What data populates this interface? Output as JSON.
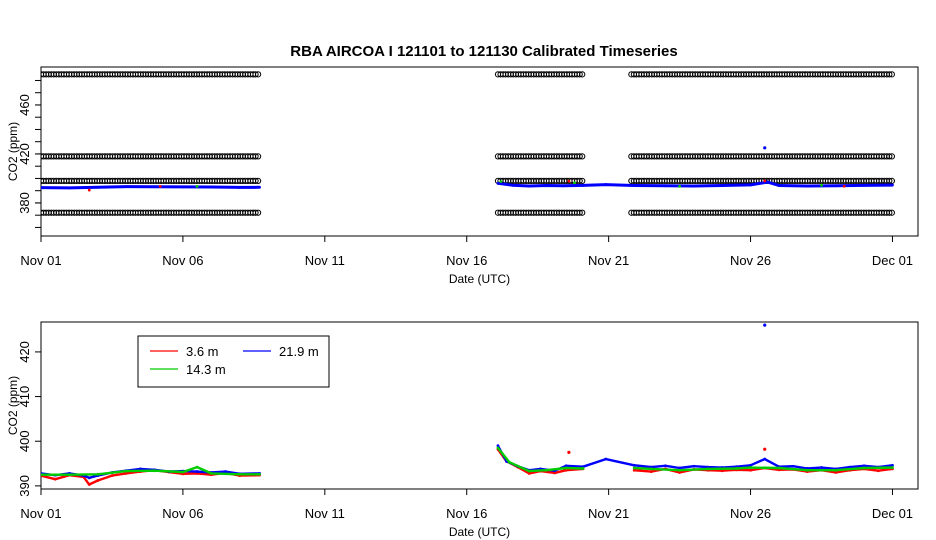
{
  "title": "RBA   AIRCOA I    121101  to  121130   Calibrated Timeseries",
  "colors": {
    "frame": "#000000",
    "red": "#ff0000",
    "green": "#00cc00",
    "blue": "#0000ff",
    "black": "#000000"
  },
  "chart_data": [
    {
      "type": "scatter",
      "xlabel": "Date (UTC)",
      "ylabel": "CO2 (ppm)",
      "xlim": [
        0,
        30.9
      ],
      "ylim": [
        353,
        491
      ],
      "xticks": [
        {
          "x": 0,
          "label": "Nov 01"
        },
        {
          "x": 5,
          "label": "Nov 06"
        },
        {
          "x": 10,
          "label": "Nov 11"
        },
        {
          "x": 15,
          "label": "Nov 16"
        },
        {
          "x": 20,
          "label": "Nov 21"
        },
        {
          "x": 25,
          "label": "Nov 26"
        },
        {
          "x": 30,
          "label": "Dec 01"
        }
      ],
      "yticks": [
        380,
        420,
        460
      ],
      "yticks_minor": [
        360,
        370,
        380,
        390,
        400,
        410,
        420,
        430,
        440,
        450,
        460,
        470,
        480
      ],
      "reference_levels": [
        {
          "y": 485,
          "segments": [
            [
              0,
              7.7
            ],
            [
              16.1,
              19.1
            ],
            [
              20.8,
              30
            ]
          ]
        },
        {
          "y": 418,
          "segments": [
            [
              0,
              7.7
            ],
            [
              16.1,
              19.1
            ],
            [
              20.8,
              30
            ]
          ]
        },
        {
          "y": 398,
          "segments": [
            [
              0,
              7.7
            ],
            [
              16.1,
              19.1
            ],
            [
              20.8,
              30
            ]
          ]
        },
        {
          "y": 372,
          "segments": [
            [
              0,
              7.7
            ],
            [
              16.1,
              19.1
            ],
            [
              20.8,
              30
            ]
          ]
        }
      ],
      "series": [
        {
          "name": "21.9 m",
          "color": "blue",
          "points": [
            [
              0,
              392.5
            ],
            [
              1,
              392.3
            ],
            [
              2,
              392.8
            ],
            [
              3,
              393.3
            ],
            [
              4,
              393.2
            ],
            [
              5,
              393.1
            ],
            [
              6,
              393
            ],
            [
              7,
              392.7
            ],
            [
              7.7,
              392.8
            ],
            [
              16.1,
              396
            ],
            [
              16.6,
              394.5
            ],
            [
              17.2,
              393.8
            ],
            [
              17.8,
              394.2
            ],
            [
              18.4,
              394
            ],
            [
              19.1,
              394.3
            ],
            [
              19.9,
              395
            ],
            [
              20.9,
              394.2
            ],
            [
              22,
              394
            ],
            [
              23,
              393.8
            ],
            [
              24,
              394.2
            ],
            [
              25,
              394.7
            ],
            [
              25.6,
              397
            ],
            [
              26,
              394.2
            ],
            [
              27,
              393.8
            ],
            [
              28,
              394
            ],
            [
              29,
              394.3
            ],
            [
              30,
              394.6
            ]
          ]
        },
        {
          "name": "14.3 m",
          "color": "green",
          "points": [
            [
              5.5,
              393.5
            ],
            [
              16.2,
              397.5
            ],
            [
              18.8,
              396.5
            ],
            [
              22.5,
              393.5
            ],
            [
              27.5,
              394.4
            ]
          ]
        },
        {
          "name": "3.6 m",
          "color": "red",
          "points": [
            [
              1.7,
              390.5
            ],
            [
              4.2,
              393.5
            ],
            [
              18.6,
              397.8
            ],
            [
              25.5,
              398
            ],
            [
              28.3,
              393.6
            ]
          ]
        }
      ],
      "outliers": [
        {
          "x": 25.5,
          "y": 425,
          "color": "blue"
        }
      ]
    },
    {
      "type": "line",
      "xlabel": "Date (UTC)",
      "ylabel": "CO2 (ppm)",
      "xlim": [
        0,
        30.9
      ],
      "ylim": [
        389.3,
        426.7
      ],
      "xticks": [
        {
          "x": 0,
          "label": "Nov 01"
        },
        {
          "x": 5,
          "label": "Nov 06"
        },
        {
          "x": 10,
          "label": "Nov 11"
        },
        {
          "x": 15,
          "label": "Nov 16"
        },
        {
          "x": 20,
          "label": "Nov 21"
        },
        {
          "x": 25,
          "label": "Nov 26"
        },
        {
          "x": 30,
          "label": "Dec 01"
        }
      ],
      "yticks": [
        390,
        400,
        410,
        420
      ],
      "legend": {
        "placement": "top-left",
        "entries": [
          {
            "label": "3.6 m",
            "color": "red"
          },
          {
            "label": "21.9 m",
            "color": "blue"
          },
          {
            "label": "14.3 m",
            "color": "green"
          }
        ]
      },
      "series": [
        {
          "name": "3.6 m",
          "color": "red",
          "points": [
            [
              0,
              392.3
            ],
            [
              0.5,
              391.5
            ],
            [
              1,
              392.4
            ],
            [
              1.5,
              392
            ],
            [
              1.7,
              390.3
            ],
            [
              2,
              391.2
            ],
            [
              2.5,
              392.3
            ],
            [
              3,
              392.8
            ],
            [
              3.5,
              393.2
            ],
            [
              4,
              393.5
            ],
            [
              4.5,
              393.1
            ],
            [
              5,
              392.7
            ],
            [
              5.5,
              392.8
            ],
            [
              6,
              392.5
            ],
            [
              6.5,
              392.9
            ],
            [
              7,
              392.3
            ],
            [
              7.7,
              392.4
            ],
            [
              16.1,
              398.2
            ],
            [
              16.4,
              395.5
            ],
            [
              16.8,
              394.2
            ],
            [
              17.2,
              392.8
            ],
            [
              17.6,
              393.3
            ],
            [
              18.1,
              392.9
            ],
            [
              18.5,
              393.5
            ],
            [
              19.1,
              393.8
            ],
            [
              20.9,
              393.5
            ],
            [
              21.5,
              393.2
            ],
            [
              22,
              393.8
            ],
            [
              22.5,
              393
            ],
            [
              23,
              393.7
            ],
            [
              23.5,
              393.5
            ],
            [
              24,
              393.4
            ],
            [
              24.5,
              393.6
            ],
            [
              25,
              393.5
            ],
            [
              25.5,
              394
            ],
            [
              26,
              393.6
            ],
            [
              26.5,
              393.7
            ],
            [
              27,
              393.2
            ],
            [
              27.5,
              393.5
            ],
            [
              28,
              393
            ],
            [
              28.5,
              393.5
            ],
            [
              29,
              393.8
            ],
            [
              29.5,
              393.4
            ],
            [
              30,
              393.8
            ]
          ]
        },
        {
          "name": "21.9 m",
          "color": "blue",
          "points": [
            [
              0,
              392.8
            ],
            [
              0.5,
              392.4
            ],
            [
              1,
              392.8
            ],
            [
              1.5,
              392.3
            ],
            [
              1.7,
              391.8
            ],
            [
              2,
              392.3
            ],
            [
              2.5,
              393
            ],
            [
              3,
              393.4
            ],
            [
              3.5,
              393.8
            ],
            [
              4,
              393.6
            ],
            [
              4.5,
              393.2
            ],
            [
              5,
              393.3
            ],
            [
              5.5,
              393.2
            ],
            [
              6,
              393
            ],
            [
              6.5,
              393.2
            ],
            [
              7,
              392.7
            ],
            [
              7.7,
              392.8
            ],
            [
              16.1,
              399
            ],
            [
              16.4,
              395.5
            ],
            [
              16.8,
              394.4
            ],
            [
              17.2,
              393.5
            ],
            [
              17.6,
              393.8
            ],
            [
              18.1,
              393.4
            ],
            [
              18.5,
              394.5
            ],
            [
              19.1,
              394.3
            ],
            [
              19.9,
              396
            ],
            [
              20.9,
              394.6
            ],
            [
              21.5,
              394.2
            ],
            [
              22,
              394.5
            ],
            [
              22.5,
              394
            ],
            [
              23,
              394.4
            ],
            [
              23.5,
              394.2
            ],
            [
              24,
              394.1
            ],
            [
              24.5,
              394.3
            ],
            [
              25,
              394.6
            ],
            [
              25.5,
              396
            ],
            [
              26,
              394.3
            ],
            [
              26.5,
              394.4
            ],
            [
              27,
              393.9
            ],
            [
              27.5,
              394.1
            ],
            [
              28,
              393.8
            ],
            [
              28.5,
              394.2
            ],
            [
              29,
              394.5
            ],
            [
              29.5,
              394.2
            ],
            [
              30,
              394.6
            ]
          ]
        },
        {
          "name": "14.3 m",
          "color": "green",
          "points": [
            [
              0,
              392.5
            ],
            [
              1,
              392.5
            ],
            [
              2,
              392.6
            ],
            [
              3,
              393.3
            ],
            [
              4,
              393.4
            ],
            [
              5,
              393.1
            ],
            [
              5.5,
              394.2
            ],
            [
              6,
              392.8
            ],
            [
              7,
              392.6
            ],
            [
              7.7,
              392.6
            ],
            [
              16.1,
              398.5
            ],
            [
              16.5,
              395.3
            ],
            [
              17.2,
              393.3
            ],
            [
              17.8,
              393.5
            ],
            [
              18.5,
              394
            ],
            [
              19.1,
              393.9
            ],
            [
              20.9,
              394
            ],
            [
              21.5,
              393.8
            ],
            [
              22.5,
              393.5
            ],
            [
              23.5,
              393.8
            ],
            [
              24.5,
              393.9
            ],
            [
              25,
              394.1
            ],
            [
              26,
              394
            ],
            [
              27,
              393.5
            ],
            [
              28,
              393.5
            ],
            [
              29,
              394
            ],
            [
              30,
              394.1
            ]
          ]
        }
      ],
      "outliers": [
        {
          "x": 25.5,
          "y": 426,
          "color": "blue"
        },
        {
          "x": 25.5,
          "y": 398.2,
          "color": "red"
        },
        {
          "x": 18.6,
          "y": 397.5,
          "color": "red"
        }
      ]
    }
  ]
}
